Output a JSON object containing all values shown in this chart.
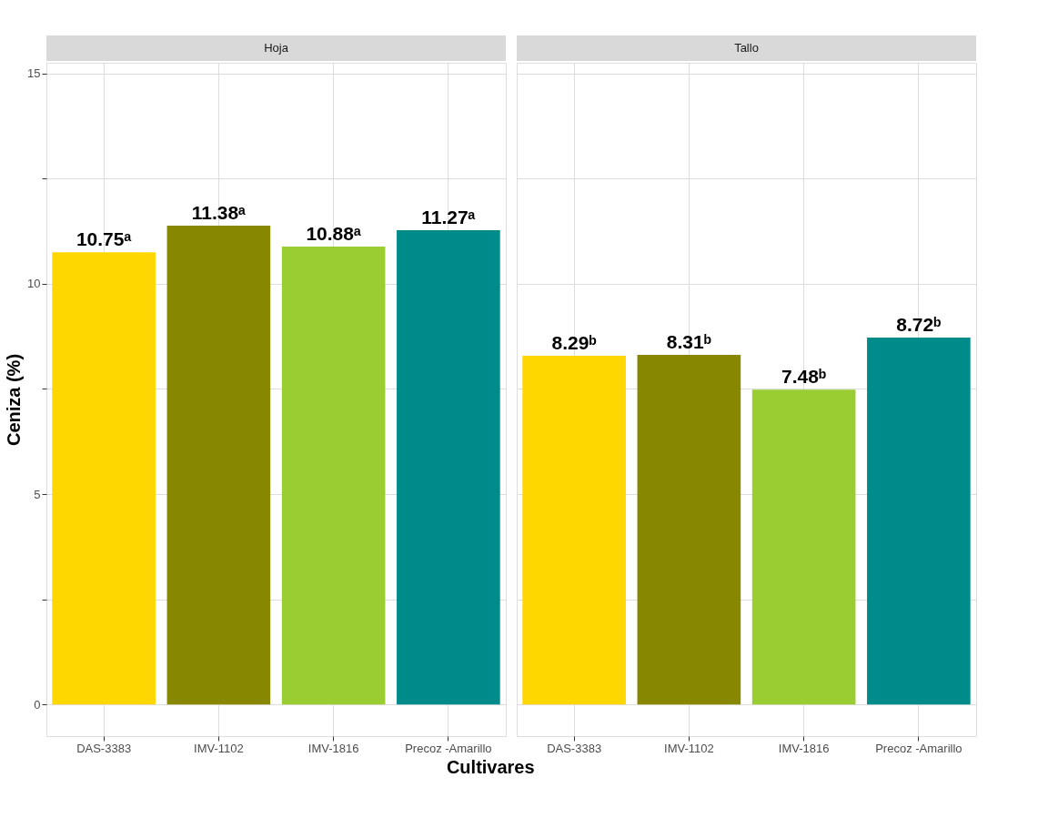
{
  "chart_data": [
    {
      "type": "bar",
      "title": "Hoja",
      "xlabel": "Cultivares",
      "ylabel": "Ceniza (%)",
      "categories": [
        "DAS-3383",
        "IMV-1102",
        "IMV-1816",
        "Precoz -Amarillo"
      ],
      "values": [
        10.75,
        11.38,
        10.88,
        11.27
      ],
      "colors": [
        "#ffd700",
        "#878700",
        "#9acd32",
        "#008b8b"
      ],
      "value_labels": [
        "10.75ᵃ",
        "11.38ᵃ",
        "10.88ᵃ",
        "11.27ᵃ"
      ],
      "ylim": [
        -0.75,
        15.25
      ],
      "yticks": [
        0,
        {
          "value": 2.5,
          "label": null
        },
        5,
        {
          "value": 7.5,
          "label": null
        },
        10,
        {
          "value": 12.5,
          "label": null
        },
        15
      ],
      "grid": true,
      "legend": false
    },
    {
      "type": "bar",
      "title": "Tallo",
      "categories": [
        "DAS-3383",
        "IMV-1102",
        "IMV-1816",
        "Precoz -Amarillo"
      ],
      "values": [
        8.29,
        8.31,
        7.48,
        8.72
      ],
      "colors": [
        "#ffd700",
        "#878700",
        "#9acd32",
        "#008b8b"
      ],
      "value_labels": [
        "8.29ᵇ",
        "8.31ᵇ",
        "7.48ᵇ",
        "8.72ᵇ"
      ],
      "ylim": [
        -0.75,
        15.25
      ],
      "yticks": [
        0,
        {
          "value": 2.5,
          "label": null
        },
        5,
        {
          "value": 7.5,
          "label": null
        },
        10,
        {
          "value": 12.5,
          "label": null
        },
        15
      ],
      "grid": true,
      "legend": false,
      "tick_labels": "x"
    }
  ]
}
